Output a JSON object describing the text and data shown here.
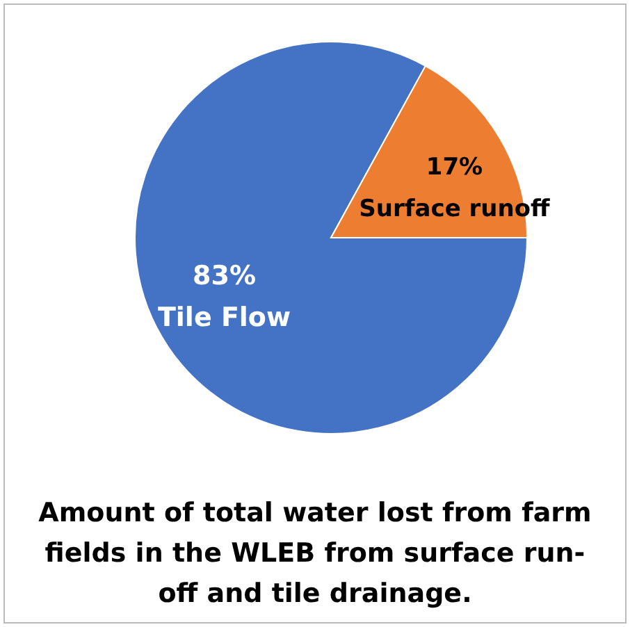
{
  "chart_data": {
    "type": "pie",
    "title": "Amount of total water lost from farm fields in the WLEB from surface run-off and tile drainage.",
    "categories": [
      "Tile Flow",
      "Surface runoff"
    ],
    "values": [
      83,
      17
    ],
    "colors": [
      "#4472c4",
      "#ed7d31"
    ],
    "value_labels": [
      "83%",
      "17%"
    ]
  }
}
